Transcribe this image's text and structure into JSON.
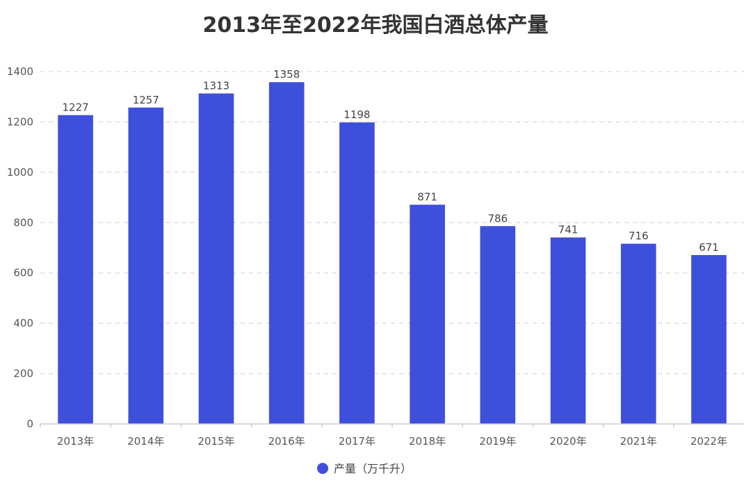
{
  "chart_data": {
    "type": "bar",
    "title": "2013年至2022年我国白酒总体产量",
    "categories": [
      "2013年",
      "2014年",
      "2015年",
      "2016年",
      "2017年",
      "2018年",
      "2019年",
      "2020年",
      "2021年",
      "2022年"
    ],
    "series": [
      {
        "name": "产量（万千升）",
        "values": [
          1227,
          1257,
          1313,
          1358,
          1198,
          871,
          786,
          741,
          716,
          671
        ],
        "color": "#3d4fdb"
      }
    ],
    "yticks": [
      "0",
      "200",
      "400",
      "600",
      "800",
      "1000",
      "1200",
      "1400"
    ],
    "ylim": [
      0,
      1400
    ],
    "grid": true,
    "legend_position": "bottom-center",
    "data_labels": true
  }
}
